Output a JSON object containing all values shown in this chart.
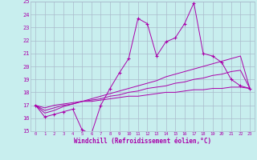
{
  "xlabel": "Windchill (Refroidissement éolien,°C)",
  "bg_color": "#c8eeee",
  "line_color": "#aa00aa",
  "grid_color": "#aabbcc",
  "x_data": [
    0,
    1,
    2,
    3,
    4,
    5,
    6,
    7,
    8,
    9,
    10,
    11,
    12,
    13,
    14,
    15,
    16,
    17,
    18,
    19,
    20,
    21,
    22,
    23
  ],
  "y_main": [
    17.0,
    16.1,
    16.3,
    16.5,
    16.7,
    15.1,
    14.8,
    17.0,
    18.3,
    19.5,
    20.6,
    23.7,
    23.3,
    20.8,
    21.9,
    22.2,
    23.3,
    24.9,
    21.0,
    20.8,
    20.3,
    19.0,
    18.5,
    18.3
  ],
  "y_reg1": [
    17.0,
    16.8,
    17.0,
    17.1,
    17.2,
    17.3,
    17.3,
    17.4,
    17.5,
    17.6,
    17.7,
    17.7,
    17.8,
    17.9,
    18.0,
    18.0,
    18.1,
    18.2,
    18.2,
    18.3,
    18.3,
    18.4,
    18.4,
    18.3
  ],
  "y_reg2": [
    17.0,
    16.6,
    16.8,
    17.0,
    17.1,
    17.3,
    17.4,
    17.5,
    17.7,
    17.8,
    18.0,
    18.1,
    18.3,
    18.4,
    18.5,
    18.7,
    18.8,
    19.0,
    19.1,
    19.3,
    19.4,
    19.6,
    19.7,
    18.3
  ],
  "y_reg3": [
    17.0,
    16.4,
    16.6,
    16.9,
    17.1,
    17.3,
    17.5,
    17.7,
    17.9,
    18.1,
    18.3,
    18.5,
    18.7,
    18.9,
    19.2,
    19.4,
    19.6,
    19.8,
    20.0,
    20.2,
    20.4,
    20.6,
    20.8,
    18.3
  ],
  "ylim": [
    15,
    25
  ],
  "xlim": [
    -0.5,
    23.5
  ],
  "yticks": [
    15,
    16,
    17,
    18,
    19,
    20,
    21,
    22,
    23,
    24,
    25
  ],
  "xticks": [
    0,
    1,
    2,
    3,
    4,
    5,
    6,
    7,
    8,
    9,
    10,
    11,
    12,
    13,
    14,
    15,
    16,
    17,
    18,
    19,
    20,
    21,
    22,
    23
  ]
}
